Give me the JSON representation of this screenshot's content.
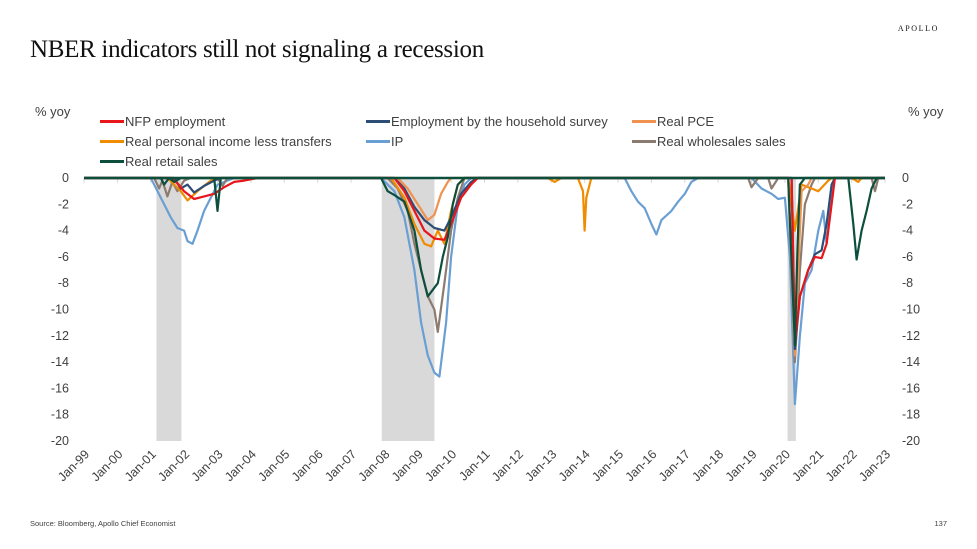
{
  "brand": "APOLLO",
  "title": "NBER indicators still not signaling a recession",
  "source": "Source: Bloomberg, Apollo Chief Economist",
  "page_number": "137",
  "chart_data": {
    "type": "line",
    "title": "NBER indicators still not signaling a recession",
    "ylabel_left": "% yoy",
    "ylabel_right": "% yoy",
    "ylim": [
      -20,
      0
    ],
    "yticks": [
      0,
      -2,
      -4,
      -6,
      -8,
      -10,
      -12,
      -14,
      -16,
      -18,
      -20
    ],
    "xlim": [
      1999.0,
      2023.0
    ],
    "xtick_labels": [
      "Jan-99",
      "Jan-00",
      "Jan-01",
      "Jan-02",
      "Jan-03",
      "Jan-04",
      "Jan-05",
      "Jan-06",
      "Jan-07",
      "Jan-08",
      "Jan-09",
      "Jan-10",
      "Jan-11",
      "Jan-12",
      "Jan-13",
      "Jan-14",
      "Jan-15",
      "Jan-16",
      "Jan-17",
      "Jan-18",
      "Jan-19",
      "Jan-20",
      "Jan-21",
      "Jan-22",
      "Jan-23"
    ],
    "legend_position": "top",
    "recessions": [
      {
        "start": 2001.17,
        "end": 2001.92
      },
      {
        "start": 2007.92,
        "end": 2009.5
      },
      {
        "start": 2020.08,
        "end": 2020.33
      }
    ],
    "recession_color": "#d9d9d9",
    "note": "Series are capped at 0 (values shown only when negative, % yoy)",
    "series": [
      {
        "name": "NFP employment",
        "color": "#e8151b",
        "points": [
          [
            1999.0,
            0
          ],
          [
            2001.6,
            0
          ],
          [
            2001.8,
            -0.4
          ],
          [
            2002.0,
            -1.0
          ],
          [
            2002.3,
            -1.6
          ],
          [
            2002.6,
            -1.4
          ],
          [
            2002.9,
            -1.2
          ],
          [
            2003.2,
            -0.7
          ],
          [
            2003.5,
            -0.3
          ],
          [
            2003.8,
            -0.2
          ],
          [
            2004.0,
            -0.1
          ],
          [
            2004.2,
            0
          ],
          [
            2008.3,
            0
          ],
          [
            2008.6,
            -1.0
          ],
          [
            2008.9,
            -2.5
          ],
          [
            2009.2,
            -4.0
          ],
          [
            2009.5,
            -4.6
          ],
          [
            2009.8,
            -4.7
          ],
          [
            2010.0,
            -3.5
          ],
          [
            2010.3,
            -1.5
          ],
          [
            2010.6,
            -0.5
          ],
          [
            2010.8,
            0
          ],
          [
            2020.2,
            0
          ],
          [
            2020.3,
            -12.5
          ],
          [
            2020.45,
            -9.0
          ],
          [
            2020.7,
            -7.0
          ],
          [
            2020.9,
            -6.0
          ],
          [
            2021.1,
            -6.1
          ],
          [
            2021.25,
            -5.0
          ],
          [
            2021.4,
            -2.0
          ],
          [
            2021.5,
            0
          ],
          [
            2023.0,
            0
          ]
        ]
      },
      {
        "name": "Employment by the household survey",
        "color": "#2e4d74",
        "points": [
          [
            1999.0,
            0
          ],
          [
            2001.7,
            0
          ],
          [
            2001.9,
            -0.8
          ],
          [
            2002.1,
            -0.5
          ],
          [
            2002.3,
            -1.1
          ],
          [
            2002.6,
            -0.6
          ],
          [
            2002.9,
            -0.2
          ],
          [
            2003.1,
            0
          ],
          [
            2008.3,
            0
          ],
          [
            2008.6,
            -0.8
          ],
          [
            2008.9,
            -2.2
          ],
          [
            2009.2,
            -3.2
          ],
          [
            2009.5,
            -3.8
          ],
          [
            2009.8,
            -4.0
          ],
          [
            2010.0,
            -3.0
          ],
          [
            2010.3,
            -1.2
          ],
          [
            2010.6,
            -0.3
          ],
          [
            2010.8,
            0
          ],
          [
            2020.2,
            0
          ],
          [
            2020.3,
            -13.0
          ],
          [
            2020.45,
            -9.0
          ],
          [
            2020.7,
            -7.0
          ],
          [
            2020.9,
            -5.8
          ],
          [
            2021.1,
            -5.5
          ],
          [
            2021.25,
            -3.5
          ],
          [
            2021.4,
            -0.5
          ],
          [
            2021.5,
            0
          ],
          [
            2023.0,
            0
          ]
        ]
      },
      {
        "name": "Real PCE",
        "color": "#f0924f",
        "points": [
          [
            1999.0,
            0
          ],
          [
            2008.4,
            0
          ],
          [
            2008.7,
            -0.8
          ],
          [
            2009.0,
            -2.0
          ],
          [
            2009.3,
            -3.2
          ],
          [
            2009.5,
            -2.8
          ],
          [
            2009.7,
            -1.2
          ],
          [
            2009.9,
            -0.3
          ],
          [
            2010.0,
            0
          ],
          [
            2020.1,
            0
          ],
          [
            2020.3,
            -13.5
          ],
          [
            2020.4,
            -7.0
          ],
          [
            2020.5,
            -1.0
          ],
          [
            2020.7,
            -0.5
          ],
          [
            2020.8,
            0
          ],
          [
            2023.0,
            0
          ]
        ]
      },
      {
        "name": "Real personal income less transfers",
        "color": "#f18b00",
        "points": [
          [
            1999.0,
            0
          ],
          [
            2001.5,
            0
          ],
          [
            2001.7,
            -0.5
          ],
          [
            2001.9,
            -1.0
          ],
          [
            2002.1,
            -1.7
          ],
          [
            2002.4,
            -1.0
          ],
          [
            2002.6,
            -0.6
          ],
          [
            2002.8,
            -0.2
          ],
          [
            2003.0,
            0
          ],
          [
            2008.2,
            0
          ],
          [
            2008.6,
            -1.5
          ],
          [
            2008.9,
            -3.5
          ],
          [
            2009.2,
            -5.0
          ],
          [
            2009.4,
            -5.2
          ],
          [
            2009.6,
            -4.0
          ],
          [
            2009.8,
            -5.0
          ],
          [
            2010.0,
            -2.5
          ],
          [
            2010.2,
            -0.5
          ],
          [
            2010.4,
            0
          ],
          [
            2012.9,
            0
          ],
          [
            2013.1,
            -0.3
          ],
          [
            2013.3,
            0
          ],
          [
            2013.8,
            0
          ],
          [
            2013.95,
            -1.0
          ],
          [
            2014.0,
            -4.0
          ],
          [
            2014.05,
            -1.5
          ],
          [
            2014.2,
            0
          ],
          [
            2020.1,
            0
          ],
          [
            2020.3,
            -4.0
          ],
          [
            2020.5,
            -0.5
          ],
          [
            2020.8,
            -0.8
          ],
          [
            2021.0,
            -1.0
          ],
          [
            2021.3,
            -0.2
          ],
          [
            2021.4,
            0
          ],
          [
            2022.0,
            0
          ],
          [
            2022.2,
            -0.3
          ],
          [
            2022.3,
            0
          ],
          [
            2023.0,
            0
          ]
        ]
      },
      {
        "name": "IP",
        "color": "#6a9fd4",
        "points": [
          [
            1999.0,
            0
          ],
          [
            2001.0,
            0
          ],
          [
            2001.3,
            -1.5
          ],
          [
            2001.6,
            -3.0
          ],
          [
            2001.8,
            -3.8
          ],
          [
            2002.0,
            -4.0
          ],
          [
            2002.1,
            -4.8
          ],
          [
            2002.25,
            -5.0
          ],
          [
            2002.4,
            -4.0
          ],
          [
            2002.6,
            -2.5
          ],
          [
            2002.8,
            -1.5
          ],
          [
            2003.0,
            -0.5
          ],
          [
            2003.3,
            -0.2
          ],
          [
            2003.5,
            0
          ],
          [
            2007.9,
            0
          ],
          [
            2008.3,
            -1.0
          ],
          [
            2008.6,
            -3.0
          ],
          [
            2008.9,
            -7.0
          ],
          [
            2009.1,
            -11.0
          ],
          [
            2009.3,
            -13.5
          ],
          [
            2009.5,
            -14.8
          ],
          [
            2009.65,
            -15.1
          ],
          [
            2009.85,
            -11.0
          ],
          [
            2010.0,
            -6.0
          ],
          [
            2010.2,
            -2.0
          ],
          [
            2010.4,
            -0.5
          ],
          [
            2010.6,
            0
          ],
          [
            2015.2,
            0
          ],
          [
            2015.4,
            -1.0
          ],
          [
            2015.6,
            -1.8
          ],
          [
            2015.8,
            -2.3
          ],
          [
            2016.0,
            -3.5
          ],
          [
            2016.15,
            -4.3
          ],
          [
            2016.3,
            -3.2
          ],
          [
            2016.6,
            -2.5
          ],
          [
            2016.8,
            -1.8
          ],
          [
            2017.0,
            -1.2
          ],
          [
            2017.2,
            -0.3
          ],
          [
            2017.4,
            0
          ],
          [
            2019.0,
            0
          ],
          [
            2019.3,
            -0.8
          ],
          [
            2019.6,
            -1.2
          ],
          [
            2019.8,
            -1.6
          ],
          [
            2020.0,
            -1.5
          ],
          [
            2020.15,
            -6.0
          ],
          [
            2020.3,
            -17.2
          ],
          [
            2020.45,
            -12.0
          ],
          [
            2020.6,
            -8.0
          ],
          [
            2020.8,
            -7.0
          ],
          [
            2021.0,
            -4.0
          ],
          [
            2021.15,
            -2.5
          ],
          [
            2021.25,
            -5.0
          ],
          [
            2021.4,
            -1.0
          ],
          [
            2021.5,
            0
          ],
          [
            2023.0,
            0
          ]
        ]
      },
      {
        "name": "Real wholesales sales",
        "color": "#8c7b70",
        "points": [
          [
            1999.0,
            0
          ],
          [
            2001.1,
            0
          ],
          [
            2001.25,
            -0.8
          ],
          [
            2001.35,
            -0.2
          ],
          [
            2001.5,
            -1.4
          ],
          [
            2001.65,
            -0.3
          ],
          [
            2001.8,
            -1.0
          ],
          [
            2002.0,
            -0.2
          ],
          [
            2002.2,
            0
          ],
          [
            2003.0,
            0
          ],
          [
            2003.15,
            -0.6
          ],
          [
            2003.3,
            0
          ],
          [
            2008.1,
            0
          ],
          [
            2008.4,
            -0.8
          ],
          [
            2008.7,
            -2.5
          ],
          [
            2008.9,
            -5.0
          ],
          [
            2009.1,
            -7.0
          ],
          [
            2009.3,
            -9.0
          ],
          [
            2009.5,
            -10.0
          ],
          [
            2009.6,
            -11.7
          ],
          [
            2009.8,
            -8.0
          ],
          [
            2010.0,
            -4.0
          ],
          [
            2010.2,
            -1.5
          ],
          [
            2010.4,
            0
          ],
          [
            2018.9,
            0
          ],
          [
            2019.0,
            -0.7
          ],
          [
            2019.2,
            0
          ],
          [
            2019.5,
            0
          ],
          [
            2019.6,
            -0.8
          ],
          [
            2019.8,
            0
          ],
          [
            2020.1,
            0
          ],
          [
            2020.3,
            -14.0
          ],
          [
            2020.45,
            -7.0
          ],
          [
            2020.6,
            -2.0
          ],
          [
            2020.8,
            -0.5
          ],
          [
            2020.9,
            0
          ],
          [
            2022.6,
            0
          ],
          [
            2022.7,
            -1.0
          ],
          [
            2022.8,
            0
          ],
          [
            2023.0,
            0
          ]
        ]
      },
      {
        "name": "Real retail sales",
        "color": "#0d4f3c",
        "points": [
          [
            1999.0,
            0
          ],
          [
            2001.3,
            0
          ],
          [
            2001.4,
            -0.5
          ],
          [
            2001.55,
            0
          ],
          [
            2001.7,
            -0.3
          ],
          [
            2001.9,
            0
          ],
          [
            2002.9,
            0
          ],
          [
            2003.0,
            -2.5
          ],
          [
            2003.1,
            0
          ],
          [
            2007.9,
            0
          ],
          [
            2008.1,
            -1.0
          ],
          [
            2008.3,
            -1.3
          ],
          [
            2008.6,
            -1.8
          ],
          [
            2008.9,
            -4.0
          ],
          [
            2009.1,
            -7.0
          ],
          [
            2009.3,
            -9.0
          ],
          [
            2009.45,
            -8.5
          ],
          [
            2009.6,
            -8.0
          ],
          [
            2009.75,
            -6.0
          ],
          [
            2009.9,
            -4.5
          ],
          [
            2010.05,
            -2.0
          ],
          [
            2010.2,
            -0.5
          ],
          [
            2010.4,
            0
          ],
          [
            2020.1,
            0
          ],
          [
            2020.2,
            -6.5
          ],
          [
            2020.3,
            -12.7
          ],
          [
            2020.38,
            -5.0
          ],
          [
            2020.45,
            -0.5
          ],
          [
            2020.6,
            0
          ],
          [
            2021.9,
            0
          ],
          [
            2022.05,
            -3.5
          ],
          [
            2022.15,
            -6.2
          ],
          [
            2022.3,
            -4.0
          ],
          [
            2022.45,
            -2.5
          ],
          [
            2022.6,
            -0.8
          ],
          [
            2022.75,
            0
          ],
          [
            2023.0,
            0
          ]
        ]
      }
    ]
  },
  "legend": [
    {
      "label": "NFP employment",
      "color": "#e8151b"
    },
    {
      "label": "Employment by the household survey",
      "color": "#2e4d74"
    },
    {
      "label": "Real PCE",
      "color": "#f0924f"
    },
    {
      "label": "Real personal income less transfers",
      "color": "#f18b00"
    },
    {
      "label": "IP",
      "color": "#6a9fd4"
    },
    {
      "label": "Real wholesales sales",
      "color": "#8c7b70"
    },
    {
      "label": "Real retail sales",
      "color": "#0d4f3c"
    }
  ]
}
